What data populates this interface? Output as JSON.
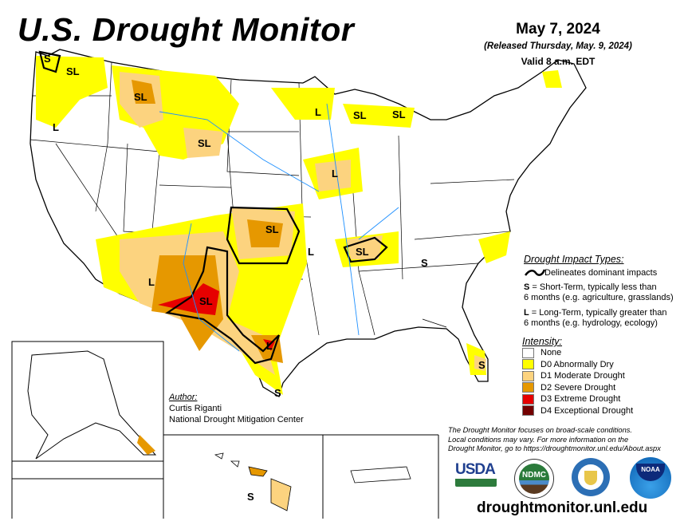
{
  "header": {
    "title": "U.S. Drought Monitor",
    "date": "May 7, 2024",
    "released": "(Released Thursday, May. 9, 2024)",
    "valid": "Valid 8 a.m. EDT"
  },
  "impact_types": {
    "heading": "Drought Impact Types:",
    "delineates": "Delineates dominant impacts",
    "s_key": "S",
    "s_text": " = Short-Term, typically less than",
    "s_text2": "6 months (e.g. agriculture, grasslands)",
    "l_key": "L",
    "l_text": " = Long-Term, typically greater than",
    "l_text2": "6 months (e.g. hydrology, ecology)"
  },
  "intensity": {
    "heading": "Intensity:",
    "levels": [
      {
        "label": "None",
        "color": "#FFFFFF"
      },
      {
        "label": "D0 Abnormally Dry",
        "color": "#FFFF00"
      },
      {
        "label": "D1 Moderate Drought",
        "color": "#FCD37F"
      },
      {
        "label": "D2 Severe Drought",
        "color": "#E69800"
      },
      {
        "label": "D3 Extreme Drought",
        "color": "#E60000"
      },
      {
        "label": "D4 Exceptional Drought",
        "color": "#730000"
      }
    ]
  },
  "author": {
    "heading": "Author:",
    "name": "Curtis Riganti",
    "org": "National Drought Mitigation Center"
  },
  "note": {
    "line1": "The Drought Monitor focuses on broad-scale conditions.",
    "line2": "Local conditions may vary. For more information on the",
    "line3": "Drought Monitor, go to https://droughtmonitor.unl.edu/About.aspx"
  },
  "logos": {
    "usda": "USDA",
    "ndmc": "NDMC",
    "noaa": "NOAA"
  },
  "url": "droughtmonitor.unl.edu",
  "map_labels": {
    "wa_s": "S",
    "wa_sl": "SL",
    "or_l": "L",
    "mt_sl": "SL",
    "wy_sl": "SL",
    "mn_l": "L",
    "wi_sl": "SL",
    "mi_sl": "SL",
    "ia_l": "L",
    "ks_sl": "SL",
    "ok_l": "L",
    "ky_sl": "SL",
    "sc_s": "S",
    "az_l": "L",
    "nm_sl": "SL",
    "tx_l": "L",
    "tx_s": "S",
    "fl_s": "S",
    "hi_s": "S"
  }
}
